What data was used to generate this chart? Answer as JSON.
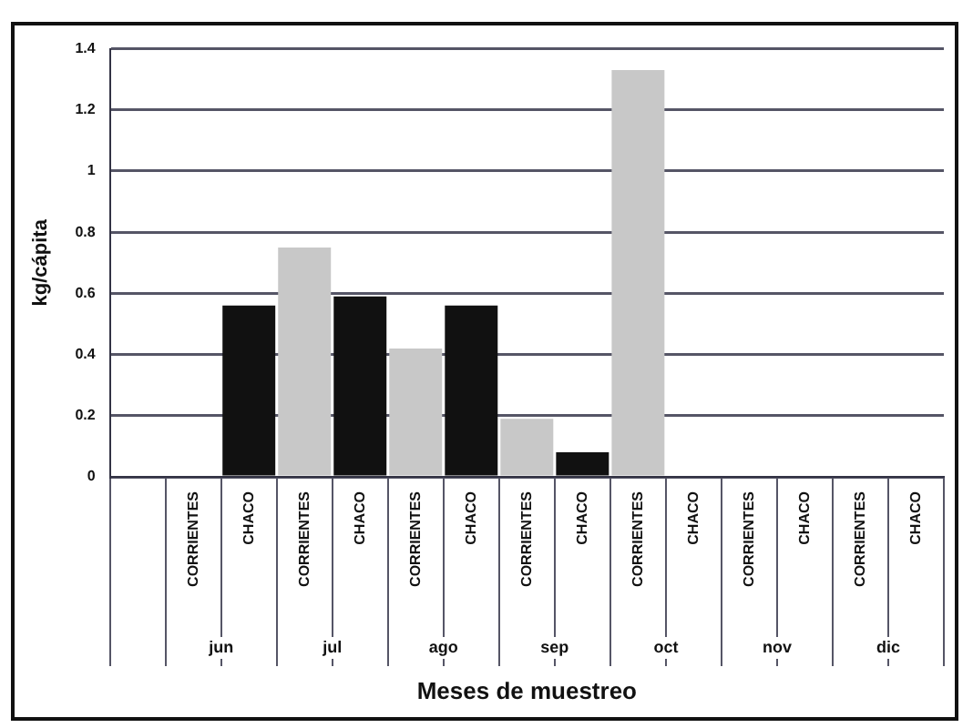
{
  "chart_data": {
    "type": "bar",
    "ylabel": "kg/cápita",
    "xlabel": "Meses de muestreo",
    "categories": [
      null,
      "CORRIENTES",
      "CHACO",
      "CORRIENTES",
      "CHACO",
      "CORRIENTES",
      "CHACO",
      "CORRIENTES",
      "CHACO",
      "CORRIENTES",
      "CHACO",
      "CORRIENTES",
      "CHACO",
      "CORRIENTES",
      "CHACO"
    ],
    "values": [
      null,
      0,
      0.56,
      0.75,
      0.59,
      0.42,
      0.56,
      0.19,
      0.08,
      1.33,
      0,
      0,
      0,
      0,
      0
    ],
    "colors": [
      "#c8c8c8",
      "#c8c8c8",
      "#111111",
      "#c8c8c8",
      "#111111",
      "#c8c8c8",
      "#111111",
      "#c8c8c8",
      "#111111",
      "#c8c8c8",
      "#111111",
      "#c8c8c8",
      "#111111",
      "#c8c8c8",
      "#111111"
    ],
    "annotations": [
      "jun",
      "jul",
      "ago",
      "sep",
      "oct",
      "nov",
      "dic"
    ],
    "ylim": [
      0,
      1.4
    ],
    "yticks": [
      0,
      0.2,
      0.4,
      0.6,
      0.8,
      1,
      1.2,
      1.4
    ],
    "grid": "y",
    "legend": false
  }
}
